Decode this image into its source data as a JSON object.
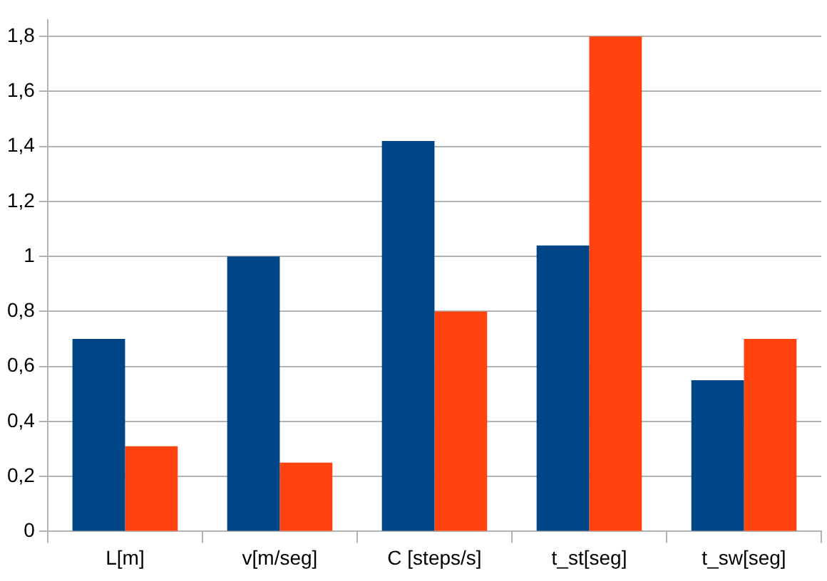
{
  "chart_data": {
    "type": "bar",
    "categories": [
      "L[m]",
      "v[m/seg]",
      "C [steps/s]",
      "t_st[seg]",
      "t_sw[seg]"
    ],
    "series": [
      {
        "color": "#004586",
        "values": [
          0.7,
          1.0,
          1.42,
          1.04,
          0.55
        ]
      },
      {
        "color": "#ff420e",
        "values": [
          0.31,
          0.25,
          0.8,
          1.8,
          0.7
        ]
      }
    ],
    "ylim": [
      0,
      1.86
    ],
    "yticks": [
      0,
      {
        "value": 0.2,
        "label": "0,2"
      },
      {
        "value": 0.4,
        "label": "0,4"
      },
      {
        "value": 0.6,
        "label": "0,6"
      },
      {
        "value": 0.8,
        "label": "0,8"
      },
      1,
      {
        "value": 1.2,
        "label": "1,2"
      },
      {
        "value": 1.4,
        "label": "1,4"
      },
      {
        "value": 1.6,
        "label": "1,6"
      },
      {
        "value": 1.8,
        "label": "1,8"
      }
    ],
    "grid": "y",
    "legend": false
  }
}
